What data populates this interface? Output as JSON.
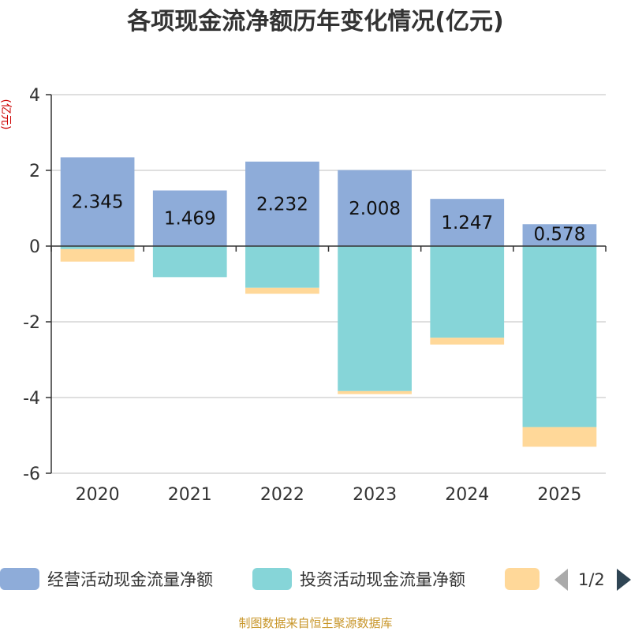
{
  "chart_data": {
    "type": "bar",
    "title": "各项现金流净额历年变化情况(亿元)",
    "ylabel": "(亿元)",
    "xlabel": "",
    "ylim": [
      -6,
      4
    ],
    "yticks": [
      4,
      2,
      0,
      -2,
      -4,
      -6
    ],
    "categories": [
      "2020",
      "2021",
      "2022",
      "2023",
      "2024",
      "2025"
    ],
    "stacked": true,
    "series": [
      {
        "name": "经营活动现金流量净额",
        "color": "#8eacd9",
        "values": [
          2.345,
          1.469,
          2.232,
          2.008,
          1.247,
          0.578
        ],
        "show_labels": true
      },
      {
        "name": "投资活动现金流量净额",
        "color": "#86d5d8",
        "values": [
          -0.08,
          -0.82,
          -1.1,
          -3.83,
          -2.42,
          -4.78
        ],
        "show_labels": false
      },
      {
        "name": "",
        "color": "#ffd899",
        "values": [
          -0.33,
          0,
          -0.16,
          -0.08,
          -0.18,
          -0.52
        ],
        "show_labels": false
      }
    ],
    "data_labels": [
      "2.345",
      "1.469",
      "2.232",
      "2.008",
      "1.247",
      "0.578"
    ],
    "legend": {
      "placement": "bottom",
      "page": "1/2"
    },
    "source": "制图数据来自恒生聚源数据库"
  }
}
